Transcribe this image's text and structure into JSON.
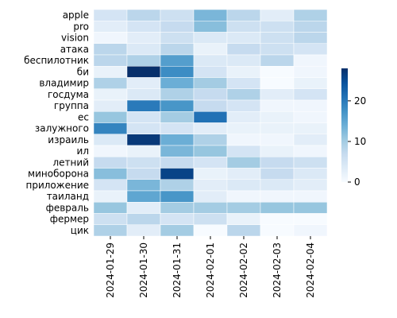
{
  "chart_data": {
    "type": "heatmap",
    "colormap": "Blues",
    "x": [
      "2024-01-29",
      "2024-01-30",
      "2024-01-31",
      "2024-02-01",
      "2024-02-02",
      "2024-02-03",
      "2024-02-04"
    ],
    "y": [
      "apple",
      "pro",
      "vision",
      "атака",
      "беспилотник",
      "би",
      "владимир",
      "госдума",
      "группа",
      "ес",
      "залужного",
      "израиль",
      "ил",
      "летний",
      "миноборона",
      "приложение",
      "таиланд",
      "февраль",
      "фермер",
      "цик"
    ],
    "values": [
      [
        5,
        8,
        6,
        13,
        8,
        3,
        9
      ],
      [
        3,
        5,
        7,
        12,
        6,
        6,
        8
      ],
      [
        1,
        3,
        6,
        4,
        4,
        6,
        8
      ],
      [
        8,
        4,
        8,
        2,
        7,
        6,
        5
      ],
      [
        8,
        9,
        16,
        4,
        4,
        8,
        1
      ],
      [
        2,
        28,
        18,
        5,
        2,
        0,
        1
      ],
      [
        9,
        3,
        14,
        10,
        5,
        0,
        2
      ],
      [
        2,
        4,
        9,
        7,
        9,
        3,
        5
      ],
      [
        3,
        20,
        17,
        7,
        5,
        1,
        1
      ],
      [
        11,
        5,
        10,
        21,
        3,
        2,
        1
      ],
      [
        19,
        5,
        5,
        3,
        2,
        2,
        2
      ],
      [
        4,
        27,
        14,
        9,
        1,
        1,
        3
      ],
      [
        1,
        2,
        13,
        11,
        5,
        2,
        1
      ],
      [
        7,
        6,
        7,
        5,
        10,
        7,
        6
      ],
      [
        12,
        7,
        26,
        2,
        3,
        7,
        4
      ],
      [
        5,
        13,
        9,
        3,
        4,
        4,
        3
      ],
      [
        2,
        15,
        17,
        3,
        1,
        1,
        1
      ],
      [
        11,
        3,
        10,
        10,
        10,
        11,
        11
      ],
      [
        6,
        8,
        5,
        6,
        2,
        0,
        0
      ],
      [
        9,
        3,
        10,
        0,
        8,
        0,
        1
      ]
    ],
    "colorbar_lim": [
      0,
      28
    ],
    "colorbar_ticks": [
      0,
      10,
      20
    ]
  }
}
